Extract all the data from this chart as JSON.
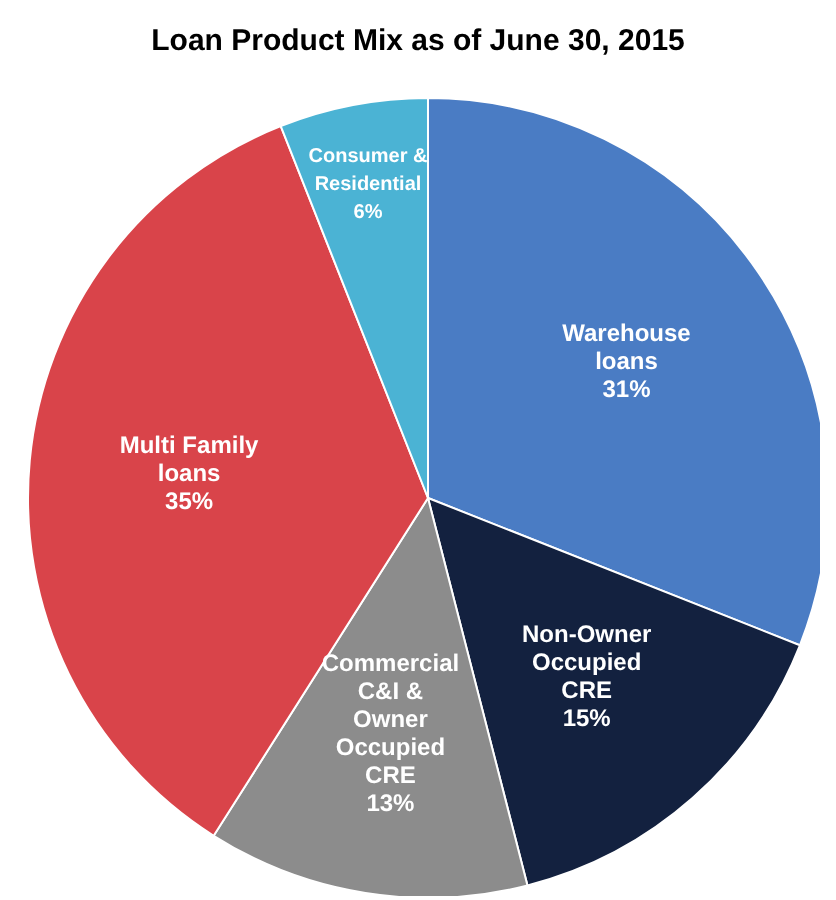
{
  "chart_data": {
    "type": "pie",
    "title": "Loan Product Mix as of June 30, 2015",
    "categories": [
      "Warehouse\nloans",
      "Non-Owner\nOccupied\nCRE",
      "Commercial\nC&I &\nOwner\nOccupied\nCRE",
      "Multi Family\nloans",
      "Consumer &\nResidential"
    ],
    "values": [
      31,
      15,
      13,
      35,
      6
    ],
    "colors": [
      "#4a7cc4",
      "#13213f",
      "#8c8c8c",
      "#d9444a",
      "#4bb3d4"
    ],
    "value_labels": [
      "31%",
      "15%",
      "13%",
      "35%",
      "6%"
    ]
  }
}
